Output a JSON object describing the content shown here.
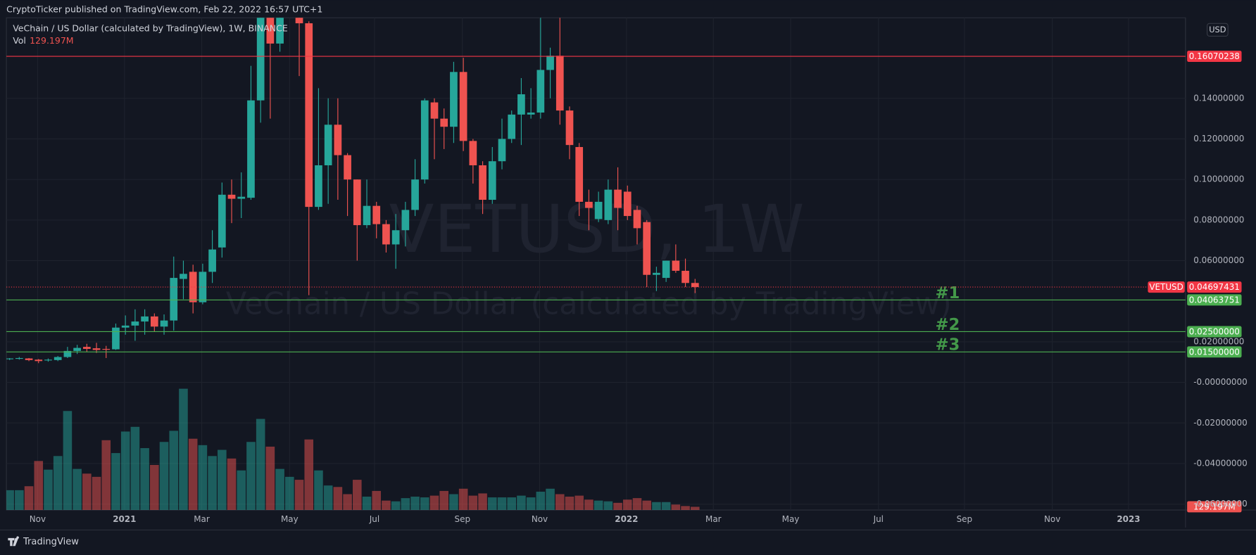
{
  "chart_data": {
    "type": "candlestick",
    "header": "CryptoTicker published on TradingView.com, Feb 22, 2022 16:57 UTC+1",
    "title": "VeChain / US Dollar (calculated by TradingView), 1W, BINANCE",
    "watermark": "VETUSD, 1W",
    "watermark_subtitle": "VeChain / US Dollar (calculated by TradingView)",
    "currency": "USD",
    "footer": "TradingView",
    "up_color": "#26a69a",
    "down_color": "#ef5350",
    "grid": true,
    "categories": [
      null,
      null,
      null,
      null,
      null,
      null,
      null,
      null,
      null,
      null,
      null,
      null,
      null,
      null,
      null,
      null,
      null,
      null,
      null,
      null,
      null,
      null,
      null,
      null,
      null,
      null,
      null,
      null,
      null,
      null,
      null,
      null,
      null,
      null,
      null,
      null,
      null,
      null,
      null,
      null,
      null,
      null,
      null,
      null,
      null,
      null,
      null,
      null,
      null,
      null,
      null,
      null,
      null,
      null,
      null,
      null,
      null,
      null,
      null,
      null,
      null,
      null,
      null,
      null,
      null,
      null,
      null,
      null,
      null,
      null,
      null,
      null
    ],
    "open": [
      0.0115,
      0.0118,
      0.0118,
      0.0112,
      0.0108,
      0.011,
      0.0125,
      0.0155,
      0.0175,
      0.0168,
      0.0165,
      0.0163,
      0.027,
      0.028,
      0.03,
      0.0325,
      0.0275,
      0.0305,
      0.051,
      0.0545,
      0.0395,
      0.0545,
      0.0665,
      0.0925,
      0.0905,
      0.091,
      0.139,
      0.185,
      0.167,
      0.2,
      0.24,
      0.177,
      0.0865,
      0.107,
      0.127,
      0.112,
      0.1,
      0.0775,
      0.087,
      0.078,
      0.068,
      0.075,
      0.085,
      0.1,
      0.138,
      0.13,
      0.126,
      0.153,
      0.119,
      0.107,
      0.09,
      0.109,
      0.12,
      0.132,
      0.132,
      0.133,
      0.154,
      0.161,
      0.134,
      0.116,
      0.089,
      0.0805,
      0.08,
      0.095,
      0.094,
      0.085,
      0.079,
      0.053,
      0.0515,
      0.06,
      0.055,
      0.049
    ],
    "high": [
      0.012,
      0.0125,
      0.012,
      0.0115,
      0.0118,
      0.013,
      0.0175,
      0.0185,
      0.019,
      0.0195,
      0.018,
      0.029,
      0.033,
      0.036,
      0.036,
      0.034,
      0.0335,
      0.062,
      0.06,
      0.058,
      0.0585,
      0.075,
      0.0985,
      0.1,
      0.1035,
      0.156,
      0.19,
      0.19,
      0.19,
      0.28,
      0.25,
      0.178,
      0.145,
      0.14,
      0.14,
      0.113,
      0.1,
      0.1,
      0.089,
      0.08,
      0.083,
      0.089,
      0.11,
      0.14,
      0.14,
      0.135,
      0.158,
      0.16,
      0.12,
      0.109,
      0.116,
      0.13,
      0.134,
      0.15,
      0.145,
      0.18,
      0.165,
      0.18,
      0.136,
      0.118,
      0.095,
      0.094,
      0.1,
      0.106,
      0.097,
      0.087,
      0.08,
      0.057,
      0.06,
      0.068,
      0.061,
      0.051
    ],
    "low": [
      0.011,
      0.0112,
      0.0105,
      0.0095,
      0.0102,
      0.0105,
      0.012,
      0.014,
      0.015,
      0.0145,
      0.012,
      0.016,
      0.0235,
      0.0205,
      0.0235,
      0.025,
      0.0235,
      0.0255,
      0.041,
      0.034,
      0.0385,
      0.049,
      0.0615,
      0.0785,
      0.081,
      0.09,
      0.128,
      0.13,
      0.163,
      0.18,
      0.151,
      0.043,
      0.085,
      0.088,
      0.09,
      0.082,
      0.06,
      0.076,
      0.071,
      0.064,
      0.056,
      0.067,
      0.082,
      0.098,
      0.11,
      0.115,
      0.118,
      0.114,
      0.098,
      0.083,
      0.088,
      0.105,
      0.118,
      0.117,
      0.13,
      0.13,
      0.14,
      0.127,
      0.11,
      0.082,
      0.075,
      0.079,
      0.078,
      0.075,
      0.08,
      0.068,
      0.047,
      0.045,
      0.0495,
      0.054,
      0.047,
      0.044
    ],
    "close": [
      0.0118,
      0.012,
      0.011,
      0.0105,
      0.0112,
      0.0125,
      0.0155,
      0.017,
      0.0165,
      0.016,
      0.0163,
      0.027,
      0.028,
      0.03,
      0.0325,
      0.0275,
      0.0305,
      0.0515,
      0.0535,
      0.0395,
      0.0545,
      0.0655,
      0.0925,
      0.0905,
      0.0915,
      0.139,
      0.185,
      0.167,
      0.185,
      0.26,
      0.177,
      0.0865,
      0.107,
      0.127,
      0.112,
      0.1,
      0.0775,
      0.087,
      0.078,
      0.068,
      0.075,
      0.085,
      0.1,
      0.139,
      0.13,
      0.126,
      0.153,
      0.119,
      0.107,
      0.09,
      0.109,
      0.12,
      0.132,
      0.142,
      0.133,
      0.154,
      0.161,
      0.134,
      0.117,
      0.089,
      0.086,
      0.089,
      0.095,
      0.086,
      0.082,
      0.076,
      0.053,
      0.054,
      0.06,
      0.055,
      0.049,
      0.047
    ],
    "volume": {
      "name": "Vol",
      "last_label": "129.197M",
      "ylim": [
        0,
        5400
      ],
      "values": [
        800,
        800,
        960,
        1980,
        1630,
        2180,
        4000,
        1660,
        1470,
        1340,
        2820,
        2300,
        3170,
        3360,
        2500,
        1820,
        2750,
        3200,
        4900,
        2880,
        2620,
        2180,
        2430,
        2080,
        1600,
        2750,
        3680,
        2560,
        1660,
        1340,
        1220,
        2850,
        1600,
        990,
        930,
        640,
        1220,
        540,
        770,
        380,
        350,
        480,
        540,
        510,
        580,
        770,
        640,
        860,
        580,
        670,
        510,
        510,
        510,
        580,
        510,
        740,
        860,
        640,
        540,
        580,
        420,
        380,
        350,
        290,
        420,
        480,
        380,
        320,
        320,
        220,
        160,
        129.197
      ]
    },
    "xlim": [
      -0.33,
      121.8
    ],
    "xticks": [
      {
        "value": 2.9,
        "label": "Nov"
      },
      {
        "value": 11.9,
        "label": "2021"
      },
      {
        "value": 19.9,
        "label": "Mar"
      },
      {
        "value": 29,
        "label": "May"
      },
      {
        "value": 37.8,
        "label": "Jul"
      },
      {
        "value": 46.9,
        "label": "Sep"
      },
      {
        "value": 54.9,
        "label": "Nov"
      },
      {
        "value": 63.9,
        "label": "2022"
      },
      {
        "value": 72.9,
        "label": "Mar"
      },
      {
        "value": 80.9,
        "label": "May"
      },
      {
        "value": 90,
        "label": "Jul"
      },
      {
        "value": 98.9,
        "label": "Sep"
      },
      {
        "value": 108,
        "label": "Nov"
      },
      {
        "value": 115.9,
        "label": "2023"
      }
    ],
    "ylim": [
      -0.0629,
      0.1797
    ],
    "yticks": [
      {
        "value": 0.14,
        "label": "0.14000000"
      },
      {
        "value": 0.12,
        "label": "0.12000000"
      },
      {
        "value": 0.1,
        "label": "0.10000000"
      },
      {
        "value": 0.08,
        "label": "0.08000000"
      },
      {
        "value": 0.06,
        "label": "0.06000000"
      },
      {
        "value": 0.02,
        "label": "0.02000000"
      },
      {
        "value": 0,
        "label": "-0.00000000"
      },
      {
        "value": -0.02,
        "label": "-0.02000000"
      },
      {
        "value": -0.04,
        "label": "-0.04000000"
      },
      {
        "value": -0.06,
        "label": "-0.06000000"
      }
    ],
    "hlines": [
      {
        "value": 0.16070238,
        "label": "0.16070238",
        "color": "#f23645"
      },
      {
        "value": 0.04063751,
        "label": "0.04063751",
        "color": "#4caf50",
        "name": "#1"
      },
      {
        "value": 0.025,
        "label": "0.02500000",
        "color": "#4caf50",
        "name": "#2"
      },
      {
        "value": 0.015,
        "label": "0.01500000",
        "color": "#4caf50",
        "name": "#3"
      }
    ],
    "last_price": {
      "name": "VETUSD",
      "value": 0.04697431,
      "label": "0.04697431",
      "color": "#f23645"
    }
  }
}
